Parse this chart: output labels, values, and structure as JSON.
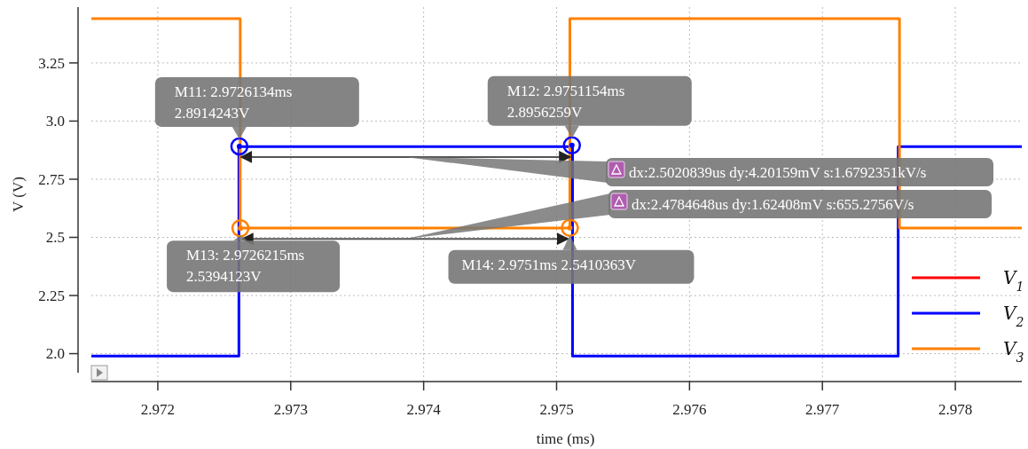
{
  "chart_data": {
    "type": "line",
    "xlabel": "time (ms)",
    "ylabel": "V (V)",
    "xlim": [
      2.9715,
      2.9785
    ],
    "xticks": [
      {
        "value": 2.972,
        "label": "2.972"
      },
      {
        "value": 2.973,
        "label": "2.973"
      },
      {
        "value": 2.974,
        "label": "2.974"
      },
      {
        "value": 2.975,
        "label": "2.975"
      },
      {
        "value": 2.976,
        "label": "2.976"
      },
      {
        "value": 2.977,
        "label": "2.977"
      },
      {
        "value": 2.978,
        "label": "2.978"
      }
    ],
    "ylim": [
      1.88,
      3.49
    ],
    "yticks": [
      {
        "value": 2.0,
        "label": "2.0"
      },
      2.25,
      2.5,
      2.75,
      {
        "value": 3.0,
        "label": "3.0"
      },
      3.25
    ],
    "grid": true,
    "legend": "bottom right",
    "line_style": "solid",
    "marker": "none",
    "series": [
      {
        "name": "V$_{1}$",
        "color": "#ff0000"
      },
      {
        "name": "V$_{2}$",
        "color": "#0000ff",
        "x": [
          2.9715,
          2.97261,
          2.97261,
          2.97512,
          2.97512,
          2.97757,
          2.97757,
          2.9785
        ],
        "values": [
          1.99,
          1.99,
          2.89,
          2.89,
          1.99,
          1.99,
          2.89,
          2.89
        ]
      },
      {
        "name": "V$_{3}$",
        "color": "#ff8000",
        "x": [
          2.9715,
          2.97262,
          2.97262,
          2.9751,
          2.9751,
          2.97758,
          2.97758,
          2.9785
        ],
        "values": [
          3.44,
          3.44,
          2.54,
          2.54,
          3.44,
          3.44,
          2.54,
          2.54
        ]
      }
    ],
    "annotations": [
      {
        "text": "M11: 2.9726134ms\n2.8914243V",
        "x": 2.9726134,
        "y": 2.8914243
      },
      {
        "text": "M12: 2.9751154ms\n2.8956259V",
        "x": 2.9751154,
        "y": 2.8956259
      },
      {
        "text": "M13: 2.9726215ms\n2.5394123V",
        "x": 2.9726215,
        "y": 2.5394123
      },
      {
        "text": "M14: 2.9751ms 2.5410363V",
        "x": 2.9751,
        "y": 2.5410363
      },
      "dx:2.5020839us dy:4.20159mV s:1.6792351kV/s",
      "dx:2.4784648us dy:1.62408mV s:655.2756V/s"
    ]
  }
}
